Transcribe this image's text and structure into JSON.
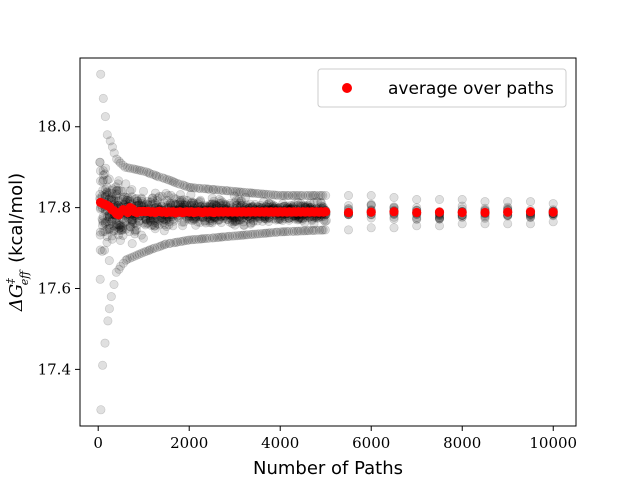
{
  "chart_data": {
    "type": "scatter",
    "xlabel": "Number of Paths",
    "ylabel": {
      "symbol": "ΔG",
      "superscript": "‡",
      "subscript": "eff",
      "unit": "(kcal/mol)"
    },
    "xlim": [
      -400,
      10500
    ],
    "ylim": [
      17.26,
      18.17
    ],
    "x_ticks": [
      0,
      2000,
      4000,
      6000,
      8000,
      10000
    ],
    "x_tick_labels": [
      "0",
      "2000",
      "4000",
      "6000",
      "8000",
      "10000"
    ],
    "y_ticks": [
      17.4,
      17.6,
      17.8,
      18.0
    ],
    "y_tick_labels": [
      "17.4",
      "17.6",
      "17.8",
      "18.0"
    ],
    "grid": false,
    "legend": {
      "position": "top-right",
      "entries": [
        {
          "label": "average over paths",
          "color": "#ff0000"
        }
      ]
    },
    "series": [
      {
        "name": "average over paths",
        "color": "#ff0000",
        "points": [
          {
            "x": 50,
            "y": 17.813
          },
          {
            "x": 100,
            "y": 17.81
          },
          {
            "x": 150,
            "y": 17.808
          },
          {
            "x": 200,
            "y": 17.805
          },
          {
            "x": 250,
            "y": 17.802
          },
          {
            "x": 300,
            "y": 17.795
          },
          {
            "x": 350,
            "y": 17.792
          },
          {
            "x": 400,
            "y": 17.785
          },
          {
            "x": 450,
            "y": 17.782
          },
          {
            "x": 500,
            "y": 17.79
          },
          {
            "x": 550,
            "y": 17.795
          },
          {
            "x": 600,
            "y": 17.792
          },
          {
            "x": 650,
            "y": 17.788
          },
          {
            "x": 700,
            "y": 17.8
          },
          {
            "x": 750,
            "y": 17.797
          },
          {
            "x": 800,
            "y": 17.79
          },
          {
            "x": 850,
            "y": 17.788
          },
          {
            "x": 900,
            "y": 17.791
          },
          {
            "x": 950,
            "y": 17.79
          },
          {
            "x": 1000,
            "y": 17.791
          },
          {
            "x": 1050,
            "y": 17.79
          },
          {
            "x": 1100,
            "y": 17.791
          },
          {
            "x": 1150,
            "y": 17.789
          },
          {
            "x": 1200,
            "y": 17.79
          },
          {
            "x": 1250,
            "y": 17.788
          },
          {
            "x": 1300,
            "y": 17.79
          },
          {
            "x": 1350,
            "y": 17.791
          },
          {
            "x": 1400,
            "y": 17.789
          },
          {
            "x": 1450,
            "y": 17.79
          },
          {
            "x": 1500,
            "y": 17.788
          },
          {
            "x": 1550,
            "y": 17.79
          },
          {
            "x": 1600,
            "y": 17.789
          },
          {
            "x": 1650,
            "y": 17.79
          },
          {
            "x": 1700,
            "y": 17.787
          },
          {
            "x": 1750,
            "y": 17.789
          },
          {
            "x": 1800,
            "y": 17.79
          },
          {
            "x": 1850,
            "y": 17.788
          },
          {
            "x": 1900,
            "y": 17.789
          },
          {
            "x": 1950,
            "y": 17.79
          },
          {
            "x": 2000,
            "y": 17.789
          },
          {
            "x": 2050,
            "y": 17.79
          },
          {
            "x": 2100,
            "y": 17.788
          },
          {
            "x": 2150,
            "y": 17.789
          },
          {
            "x": 2200,
            "y": 17.79
          },
          {
            "x": 2250,
            "y": 17.789
          },
          {
            "x": 2300,
            "y": 17.788
          },
          {
            "x": 2350,
            "y": 17.79
          },
          {
            "x": 2400,
            "y": 17.789
          },
          {
            "x": 2450,
            "y": 17.79
          },
          {
            "x": 2500,
            "y": 17.789
          },
          {
            "x": 2550,
            "y": 17.788
          },
          {
            "x": 2600,
            "y": 17.79
          },
          {
            "x": 2650,
            "y": 17.789
          },
          {
            "x": 2700,
            "y": 17.79
          },
          {
            "x": 2750,
            "y": 17.789
          },
          {
            "x": 2800,
            "y": 17.79
          },
          {
            "x": 2850,
            "y": 17.789
          },
          {
            "x": 2900,
            "y": 17.79
          },
          {
            "x": 2950,
            "y": 17.789
          },
          {
            "x": 3000,
            "y": 17.79
          },
          {
            "x": 3050,
            "y": 17.789
          },
          {
            "x": 3100,
            "y": 17.79
          },
          {
            "x": 3150,
            "y": 17.789
          },
          {
            "x": 3200,
            "y": 17.79
          },
          {
            "x": 3250,
            "y": 17.789
          },
          {
            "x": 3300,
            "y": 17.79
          },
          {
            "x": 3350,
            "y": 17.789
          },
          {
            "x": 3400,
            "y": 17.79
          },
          {
            "x": 3450,
            "y": 17.789
          },
          {
            "x": 3500,
            "y": 17.79
          },
          {
            "x": 3550,
            "y": 17.789
          },
          {
            "x": 3600,
            "y": 17.79
          },
          {
            "x": 3650,
            "y": 17.789
          },
          {
            "x": 3700,
            "y": 17.79
          },
          {
            "x": 3750,
            "y": 17.789
          },
          {
            "x": 3800,
            "y": 17.79
          },
          {
            "x": 3850,
            "y": 17.789
          },
          {
            "x": 3900,
            "y": 17.79
          },
          {
            "x": 3950,
            "y": 17.789
          },
          {
            "x": 4000,
            "y": 17.79
          },
          {
            "x": 4050,
            "y": 17.789
          },
          {
            "x": 4100,
            "y": 17.79
          },
          {
            "x": 4150,
            "y": 17.789
          },
          {
            "x": 4200,
            "y": 17.79
          },
          {
            "x": 4250,
            "y": 17.789
          },
          {
            "x": 4300,
            "y": 17.79
          },
          {
            "x": 4350,
            "y": 17.789
          },
          {
            "x": 4400,
            "y": 17.79
          },
          {
            "x": 4450,
            "y": 17.789
          },
          {
            "x": 4500,
            "y": 17.79
          },
          {
            "x": 4550,
            "y": 17.789
          },
          {
            "x": 4600,
            "y": 17.79
          },
          {
            "x": 4650,
            "y": 17.789
          },
          {
            "x": 4700,
            "y": 17.79
          },
          {
            "x": 4750,
            "y": 17.789
          },
          {
            "x": 4800,
            "y": 17.79
          },
          {
            "x": 4850,
            "y": 17.789
          },
          {
            "x": 4900,
            "y": 17.79
          },
          {
            "x": 4950,
            "y": 17.789
          },
          {
            "x": 5000,
            "y": 17.79
          },
          {
            "x": 5500,
            "y": 17.788
          },
          {
            "x": 6000,
            "y": 17.789
          },
          {
            "x": 6500,
            "y": 17.79
          },
          {
            "x": 7000,
            "y": 17.788
          },
          {
            "x": 7500,
            "y": 17.789
          },
          {
            "x": 8000,
            "y": 17.788
          },
          {
            "x": 8500,
            "y": 17.788
          },
          {
            "x": 9000,
            "y": 17.789
          },
          {
            "x": 9500,
            "y": 17.79
          },
          {
            "x": 10000,
            "y": 17.789
          }
        ]
      },
      {
        "name": "",
        "color": "#000000",
        "opacity": 0.12,
        "spread_profile": [
          {
            "x": 50,
            "ymin": 17.3,
            "ymax": 18.13
          },
          {
            "x": 100,
            "ymin": 17.41,
            "ymax": 18.07
          },
          {
            "x": 200,
            "ymin": 17.52,
            "ymax": 17.98
          },
          {
            "x": 400,
            "ymin": 17.64,
            "ymax": 17.92
          },
          {
            "x": 600,
            "ymin": 17.67,
            "ymax": 17.9
          },
          {
            "x": 1000,
            "ymin": 17.69,
            "ymax": 17.89
          },
          {
            "x": 1500,
            "ymin": 17.71,
            "ymax": 17.87
          },
          {
            "x": 2000,
            "ymin": 17.72,
            "ymax": 17.85
          },
          {
            "x": 3000,
            "ymin": 17.73,
            "ymax": 17.84
          },
          {
            "x": 4000,
            "ymin": 17.74,
            "ymax": 17.83
          },
          {
            "x": 5000,
            "ymin": 17.745,
            "ymax": 17.83
          }
        ],
        "discrete_columns": [
          {
            "x": 5500,
            "ymin": 17.745,
            "ymax": 17.83
          },
          {
            "x": 6000,
            "ymin": 17.75,
            "ymax": 17.83
          },
          {
            "x": 6500,
            "ymin": 17.75,
            "ymax": 17.825
          },
          {
            "x": 7000,
            "ymin": 17.755,
            "ymax": 17.82
          },
          {
            "x": 7500,
            "ymin": 17.755,
            "ymax": 17.82
          },
          {
            "x": 8000,
            "ymin": 17.76,
            "ymax": 17.82
          },
          {
            "x": 8500,
            "ymin": 17.76,
            "ymax": 17.815
          },
          {
            "x": 9000,
            "ymin": 17.76,
            "ymax": 17.815
          },
          {
            "x": 9500,
            "ymin": 17.76,
            "ymax": 17.815
          },
          {
            "x": 10000,
            "ymin": 17.765,
            "ymax": 17.81
          }
        ]
      }
    ]
  }
}
